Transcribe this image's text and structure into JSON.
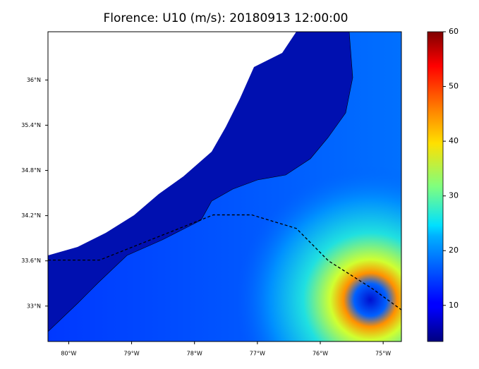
{
  "chart_data": {
    "type": "map",
    "title": "Florence: U10 (m/s): 20180913 12:00:00",
    "xlim": [
      -80.33,
      -74.71
    ],
    "ylim": [
      32.53,
      36.64
    ],
    "xticks": [
      {
        "value": -80,
        "label": "80°W"
      },
      {
        "value": -79,
        "label": "79°W"
      },
      {
        "value": -78,
        "label": "78°W"
      },
      {
        "value": -77,
        "label": "77°W"
      },
      {
        "value": -76,
        "label": "76°W"
      },
      {
        "value": -75,
        "label": "75°W"
      }
    ],
    "yticks": [
      {
        "value": 33,
        "label": "33°N"
      },
      {
        "value": 33.6,
        "label": "33.6°N"
      },
      {
        "value": 34.2,
        "label": "34.2°N"
      },
      {
        "value": 34.8,
        "label": "34.8°N"
      },
      {
        "value": 35.4,
        "label": "35.4°N"
      },
      {
        "value": 36,
        "label": "36°N"
      }
    ],
    "track": {
      "lon": [
        -80.33,
        -79.51,
        -77.7,
        -77.09,
        -76.38,
        -75.87,
        -75.17,
        -74.71
      ],
      "lat": [
        33.61,
        33.61,
        34.21,
        34.21,
        34.03,
        33.6,
        33.23,
        32.95
      ]
    },
    "colorbar": {
      "colormap": "jet",
      "lim": [
        3.4,
        60
      ],
      "ticks": [
        10,
        20,
        30,
        40,
        50,
        60
      ]
    }
  }
}
